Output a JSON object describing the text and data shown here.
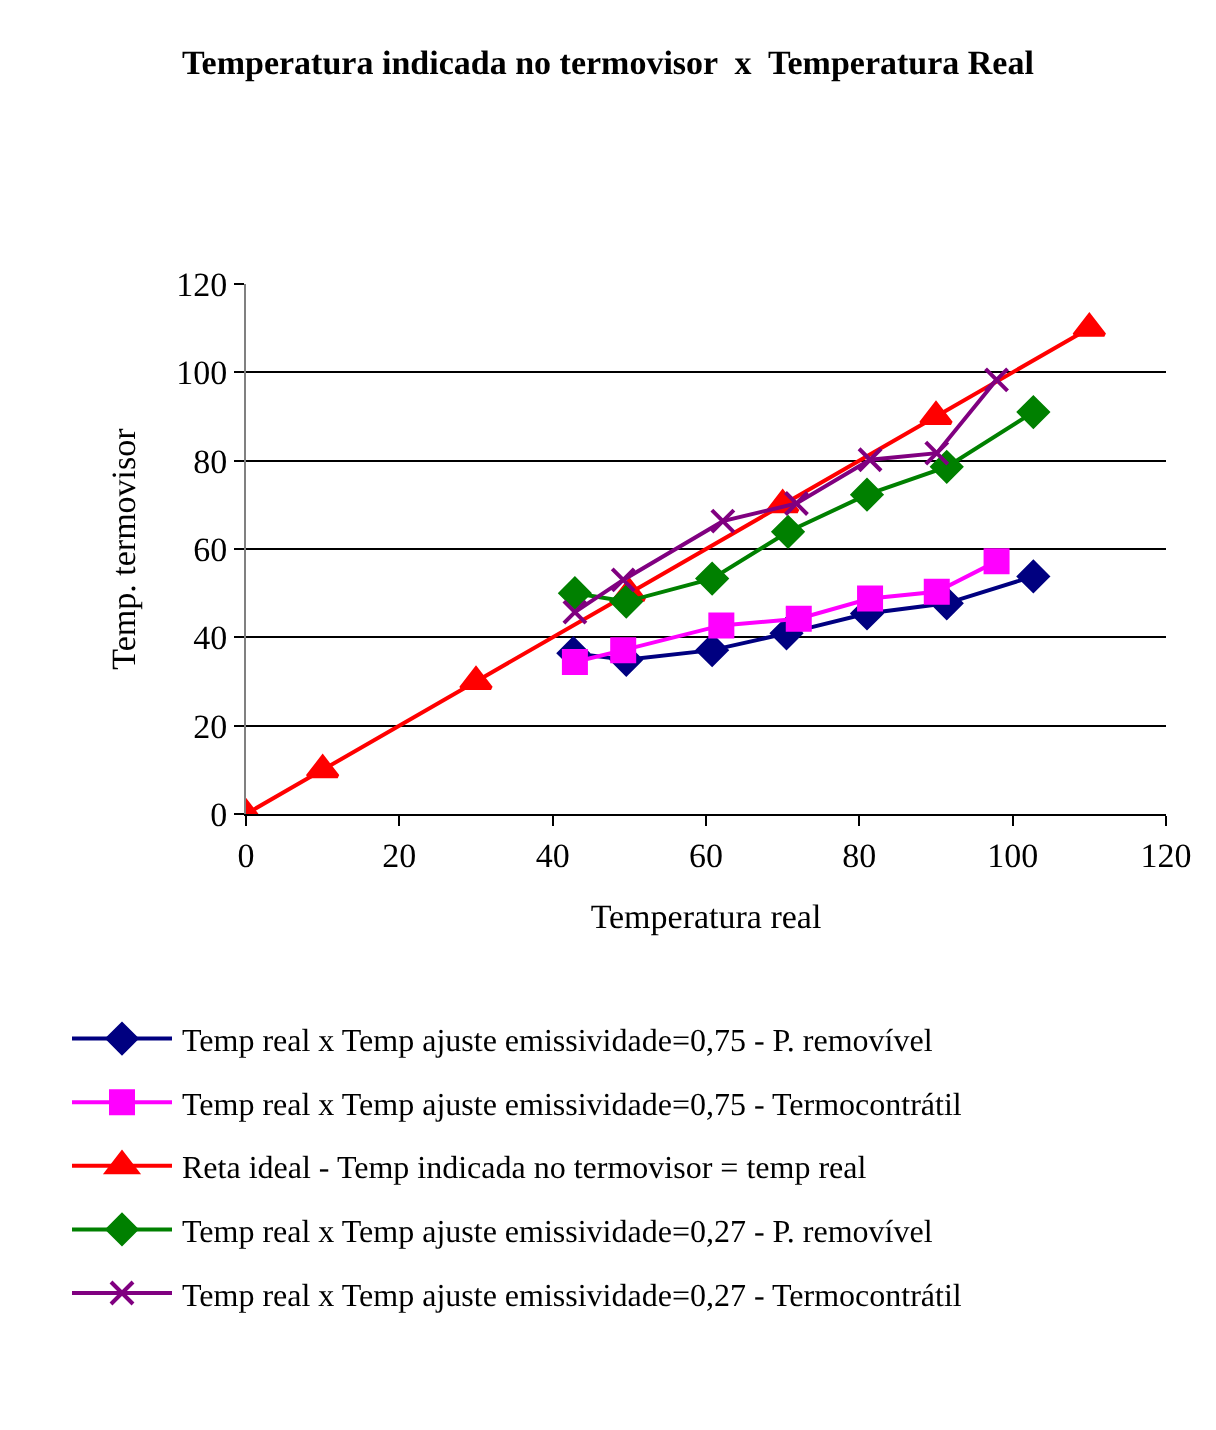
{
  "chart_data": {
    "type": "line",
    "title": "Temperatura indicada no termovisor  x  Temperatura Real",
    "xlabel": "Temperatura real",
    "ylabel": "Temp. termovisor",
    "xlim": [
      0,
      120
    ],
    "xticks": [
      0,
      20,
      40,
      60,
      80,
      100,
      120
    ],
    "ylim": [
      0,
      120
    ],
    "yticks": [
      0,
      20,
      40,
      60,
      80,
      100,
      120
    ],
    "grid": "y",
    "legend": "bottom",
    "series": [
      {
        "name": "Temp real x Temp ajuste emissividade=0,75 - P. removível",
        "color": "#000080",
        "marker": "diamond",
        "x": [
          42.7,
          49.6,
          60.8,
          70.5,
          81,
          91.4,
          102.7
        ],
        "values": [
          36.4,
          34.9,
          37.1,
          40.9,
          45.4,
          47.7,
          53.8
        ]
      },
      {
        "name": "Temp real x Temp ajuste emissividade=0,75 - Termocontrátil",
        "color": "#ff00ff",
        "marker": "square",
        "x": [
          42.9,
          49.2,
          62,
          72.1,
          81.4,
          90.1,
          97.9
        ],
        "values": [
          34.4,
          37.1,
          42.7,
          44.2,
          48.8,
          50.3,
          57.2
        ]
      },
      {
        "name": "Reta ideal - Temp indicada no termovisor = temp real",
        "color": "#ff0000",
        "marker": "triangle",
        "x": [
          0,
          10,
          30,
          50,
          70,
          90,
          110
        ],
        "values": [
          0,
          10,
          30,
          50,
          70,
          90,
          110
        ]
      },
      {
        "name": "Temp real x Temp ajuste emissividade=0,27 - P. removível",
        "color": "#008000",
        "marker": "diamond",
        "x": [
          42.9,
          49.6,
          60.8,
          70.7,
          81,
          91.4,
          102.7
        ],
        "values": [
          50,
          48.1,
          53.3,
          63.9,
          72.3,
          78.6,
          91
        ]
      },
      {
        "name": "Temp real x Temp ajuste emissividade=0,27 - Termocontrátil",
        "color": "#800080",
        "marker": "cross",
        "x": [
          42.9,
          49.2,
          62.2,
          71.8,
          81.4,
          90.1,
          97.9
        ],
        "values": [
          45.7,
          53,
          66.3,
          70.3,
          80.2,
          81.7,
          98.3
        ]
      }
    ]
  }
}
